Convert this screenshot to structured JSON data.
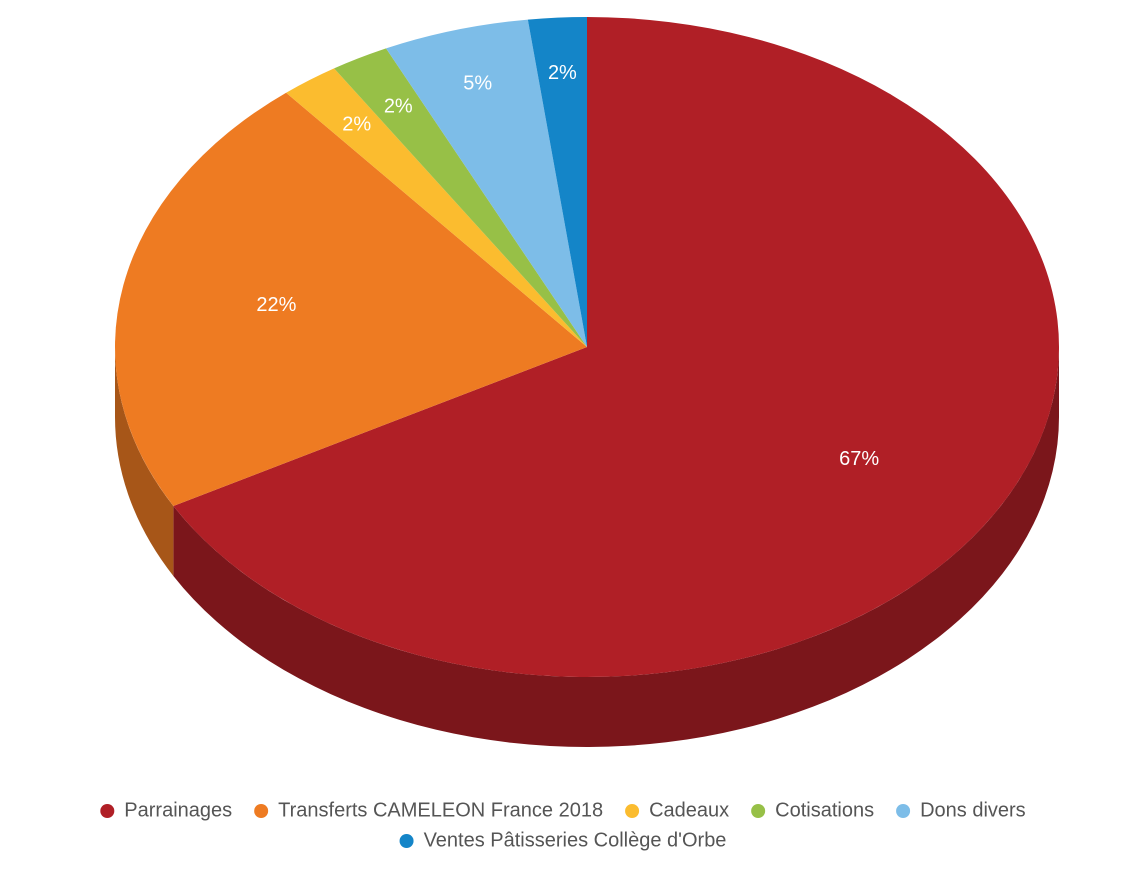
{
  "chart_data": {
    "type": "pie",
    "categories": [
      "Parrainages",
      "Transferts CAMELEON France 2018",
      "Cadeaux",
      "Cotisations",
      "Dons divers",
      "Ventes Pâtisseries Collège d'Orbe"
    ],
    "values": [
      67,
      22,
      2,
      2,
      5,
      2
    ],
    "value_labels": [
      "67%",
      "22%",
      "2%",
      "2%",
      "5%",
      "2%"
    ],
    "colors": [
      "#b01f26",
      "#ee7b22",
      "#fbbc2f",
      "#97c047",
      "#7dbde8",
      "#1485c8"
    ],
    "legend": "bottom"
  }
}
